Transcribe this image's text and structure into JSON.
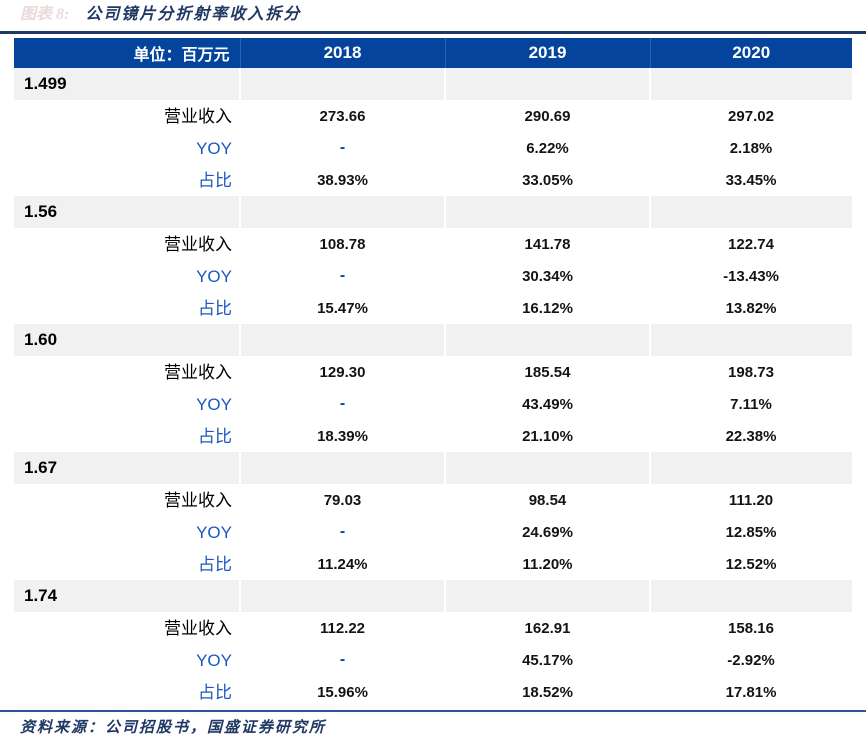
{
  "page": {
    "title_prefix": "图表 8:",
    "title": "公司镜片分折射率收入拆分",
    "footer": "资料来源：公司招股书，国盛证券研究所"
  },
  "colors": {
    "header_bg": "#04449C",
    "title_navy": "#1F3864",
    "label_blue": "#1D57C5",
    "dash_blue": "#0A47A5",
    "band_gray": "#F1F1F1",
    "bottom_rule_blue": "#2E5496",
    "title_prefix_pink": "#EADBDA"
  },
  "table": {
    "unit_label": "单位：百万元",
    "columns": [
      "2018",
      "2019",
      "2020"
    ],
    "row_labels": {
      "revenue": "营业收入",
      "yoy": "YOY",
      "share": "占比"
    },
    "sections": [
      {
        "index": "1.499",
        "revenue": [
          "273.66",
          "290.69",
          "297.02"
        ],
        "yoy": [
          "-",
          "6.22%",
          "2.18%"
        ],
        "share": [
          "38.93%",
          "33.05%",
          "33.45%"
        ]
      },
      {
        "index": "1.56",
        "revenue": [
          "108.78",
          "141.78",
          "122.74"
        ],
        "yoy": [
          "-",
          "30.34%",
          "-13.43%"
        ],
        "share": [
          "15.47%",
          "16.12%",
          "13.82%"
        ]
      },
      {
        "index": "1.60",
        "revenue": [
          "129.30",
          "185.54",
          "198.73"
        ],
        "yoy": [
          "-",
          "43.49%",
          "7.11%"
        ],
        "share": [
          "18.39%",
          "21.10%",
          "22.38%"
        ]
      },
      {
        "index": "1.67",
        "revenue": [
          "79.03",
          "98.54",
          "111.20"
        ],
        "yoy": [
          "-",
          "24.69%",
          "12.85%"
        ],
        "share": [
          "11.24%",
          "11.20%",
          "12.52%"
        ]
      },
      {
        "index": "1.74",
        "revenue": [
          "112.22",
          "162.91",
          "158.16"
        ],
        "yoy": [
          "-",
          "45.17%",
          "-2.92%"
        ],
        "share": [
          "15.96%",
          "18.52%",
          "17.81%"
        ]
      }
    ]
  }
}
